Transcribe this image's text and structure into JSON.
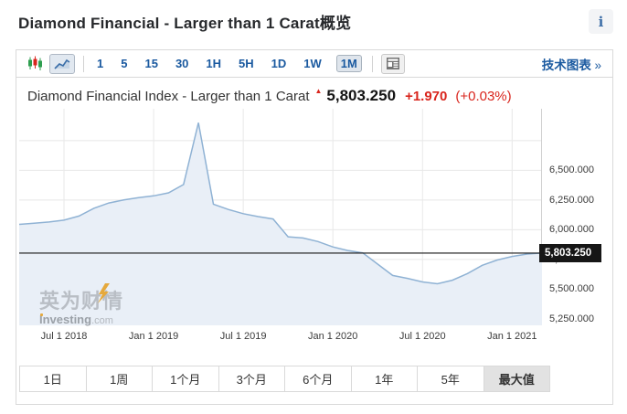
{
  "page": {
    "title": "Diamond Financial - Larger than 1 Carat概览",
    "info_icon": "i"
  },
  "toolbar": {
    "chart_types": [
      {
        "name": "candlestick-chart",
        "selected": false
      },
      {
        "name": "line-chart",
        "selected": true
      }
    ],
    "intervals": [
      {
        "label": "1",
        "selected": false
      },
      {
        "label": "5",
        "selected": false
      },
      {
        "label": "15",
        "selected": false
      },
      {
        "label": "30",
        "selected": false
      },
      {
        "label": "1H",
        "selected": false
      },
      {
        "label": "5H",
        "selected": false
      },
      {
        "label": "1D",
        "selected": false
      },
      {
        "label": "1W",
        "selected": false
      },
      {
        "label": "1M",
        "selected": true
      }
    ],
    "news_icon": "news-panel-icon",
    "technical_chart_label": "技术图表",
    "technical_chart_arrow": "»"
  },
  "quote": {
    "name": "Diamond Financial Index - Larger than 1 Carat",
    "arrow": "▲",
    "last": "5,803.250",
    "change": "+1.970",
    "change_pct": "(+0.03%)"
  },
  "chart_data": {
    "type": "area",
    "title": "Diamond Financial Index - Larger than 1 Carat",
    "x": [
      "Apr 2018",
      "May 2018",
      "Jun 2018",
      "Jul 2018",
      "Aug 2018",
      "Sep 2018",
      "Oct 2018",
      "Nov 2018",
      "Dec 2018",
      "Jan 2019",
      "Feb 2019",
      "Mar 2019",
      "Apr 2019",
      "May 2019",
      "Jun 2019",
      "Jul 2019",
      "Aug 2019",
      "Sep 2019",
      "Oct 2019",
      "Nov 2019",
      "Dec 2019",
      "Jan 2020",
      "Feb 2020",
      "Mar 2020",
      "Apr 2020",
      "May 2020",
      "Jun 2020",
      "Jul 2020",
      "Aug 2020",
      "Sep 2020",
      "Oct 2020",
      "Nov 2020",
      "Dec 2020",
      "Jan 2021",
      "Feb 2021",
      "Mar 2021"
    ],
    "values": [
      6045,
      6055,
      6065,
      6080,
      6115,
      6180,
      6225,
      6250,
      6270,
      6285,
      6310,
      6380,
      6900,
      6215,
      6170,
      6135,
      6110,
      6090,
      5940,
      5930,
      5900,
      5855,
      5825,
      5805,
      5710,
      5615,
      5590,
      5560,
      5545,
      5575,
      5630,
      5700,
      5745,
      5775,
      5795,
      5803.25
    ],
    "x_tick_labels": [
      "Jul 1 2018",
      "Jan 1 2019",
      "Jul 1 2019",
      "Jan 1 2020",
      "Jul 1 2020",
      "Jan 1 2021"
    ],
    "x_tick_indices": [
      3,
      9,
      15,
      21,
      27,
      33
    ],
    "y_tick_labels": [
      "6,500.000",
      "6,250.000",
      "6,000.000",
      "5,750.000",
      "5,500.000",
      "5,250.000"
    ],
    "y_ticks": [
      6500,
      6250,
      6000,
      5750,
      5500,
      5250
    ],
    "y_grid_extra": [
      6750
    ],
    "ylim": [
      5195,
      7018
    ],
    "grid": true,
    "legend": false,
    "last_value": 5803.25,
    "last_value_label": "5,803.250",
    "xlabel": "",
    "ylabel": ""
  },
  "watermark": {
    "cn": "英为财情",
    "en": "Investing",
    "tld": ".com"
  },
  "range_buttons": [
    {
      "label": "1日",
      "selected": false
    },
    {
      "label": "1周",
      "selected": false
    },
    {
      "label": "1个月",
      "selected": false
    },
    {
      "label": "3个月",
      "selected": false
    },
    {
      "label": "6个月",
      "selected": false
    },
    {
      "label": "1年",
      "selected": false
    },
    {
      "label": "5年",
      "selected": false
    },
    {
      "label": "最大值",
      "selected": true
    }
  ],
  "colors": {
    "accent_blue": "#1b5aa0",
    "red": "#d9251d",
    "green": "#2e9e4f",
    "line": "#8fb2d4",
    "area_fill": "#e9eff7",
    "grid": "#e8e8e8",
    "price_line": "#161616",
    "badge_bg": "#161616",
    "border": "#d9d9d9",
    "watermark_gray": "#b9bec5",
    "watermark_gold": "#e5a93d"
  }
}
